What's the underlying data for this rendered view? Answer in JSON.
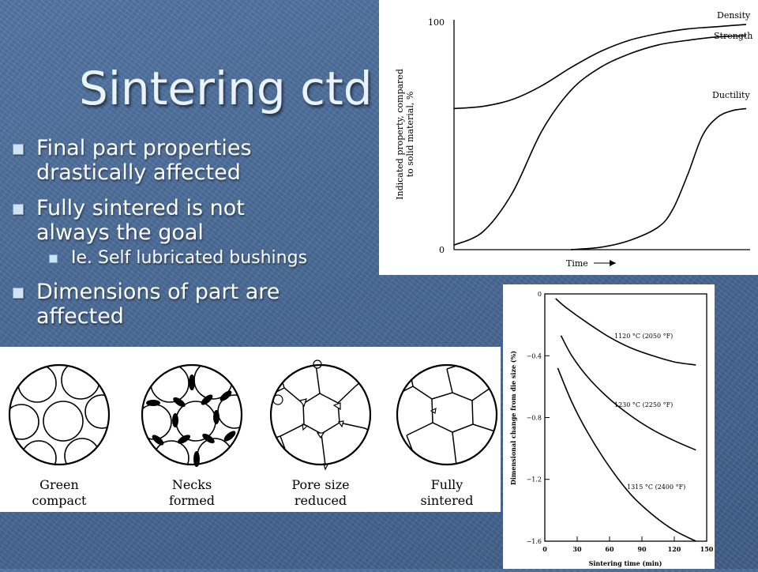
{
  "slide": {
    "title": "Sintering ctd",
    "bullets": [
      {
        "text": "Final part properties drastically affected",
        "lines": [
          "Final part properties",
          "drastically affected"
        ]
      },
      {
        "text": "Fully sintered is not always the goal",
        "lines": [
          "Fully sintered is not",
          "always the goal"
        ]
      },
      {
        "text": "Dimensions of part are affected",
        "lines": [
          "Dimensions of part are",
          "affected"
        ]
      }
    ],
    "sub_bullet": "Ie. Self lubricated bushings"
  },
  "chart_data": [
    {
      "type": "line",
      "xlabel": "Time",
      "ylabel": "Indicated property, compared to solid material, %",
      "ylabel_lines": [
        "Indicated property, compared",
        "to solid material, %"
      ],
      "y_ticks": [
        "100",
        "0"
      ],
      "ylim": [
        0,
        100
      ],
      "series": [
        {
          "name": "Density",
          "x": [
            0,
            10,
            20,
            30,
            40,
            50,
            60,
            70,
            80,
            90,
            100
          ],
          "values": [
            62,
            63,
            66,
            72,
            80,
            87,
            92,
            95,
            97,
            98,
            99
          ]
        },
        {
          "name": "Strength",
          "x": [
            0,
            10,
            20,
            30,
            40,
            50,
            60,
            70,
            80,
            90,
            100
          ],
          "values": [
            2,
            8,
            25,
            52,
            70,
            80,
            86,
            90,
            92,
            93.5,
            94
          ]
        },
        {
          "name": "Ductility",
          "x": [
            40,
            50,
            60,
            70,
            75,
            80,
            85,
            90,
            95,
            100
          ],
          "values": [
            0,
            1,
            4,
            10,
            18,
            33,
            50,
            58,
            61,
            62
          ]
        }
      ]
    },
    {
      "type": "line",
      "xlabel": "Sintering time (min)",
      "ylabel": "Dimensional change from die size (%)",
      "x_ticks": [
        "0",
        "30",
        "60",
        "90",
        "120",
        "150"
      ],
      "y_ticks": [
        "0",
        "−0.4",
        "−0.8",
        "−1.2",
        "−1.6"
      ],
      "xlim": [
        0,
        150
      ],
      "ylim": [
        -1.6,
        0
      ],
      "series": [
        {
          "name": "1120 °C (2050 °F)",
          "x": [
            10,
            20,
            40,
            60,
            80,
            100,
            120,
            140
          ],
          "values": [
            -0.03,
            -0.09,
            -0.19,
            -0.28,
            -0.35,
            -0.4,
            -0.44,
            -0.46
          ]
        },
        {
          "name": "1230 °C (2250 °F)",
          "x": [
            15,
            25,
            40,
            60,
            80,
            100,
            120,
            140
          ],
          "values": [
            -0.27,
            -0.4,
            -0.54,
            -0.68,
            -0.79,
            -0.88,
            -0.95,
            -1.01
          ]
        },
        {
          "name": "1315 °C (2400 °F)",
          "x": [
            12,
            25,
            40,
            60,
            80,
            100,
            120,
            140
          ],
          "values": [
            -0.48,
            -0.7,
            -0.9,
            -1.12,
            -1.3,
            -1.43,
            -1.53,
            -1.6
          ]
        }
      ]
    }
  ],
  "stages": [
    {
      "lines": [
        "Green",
        "compact"
      ]
    },
    {
      "lines": [
        "Necks",
        "formed"
      ]
    },
    {
      "lines": [
        "Pore size",
        "reduced"
      ]
    },
    {
      "lines": [
        "Fully",
        "sintered"
      ]
    }
  ]
}
